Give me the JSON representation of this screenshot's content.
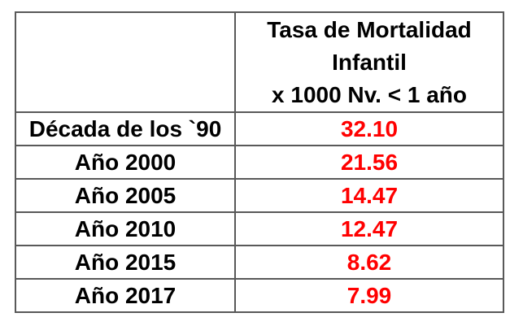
{
  "table": {
    "header_lines": [
      "Tasa de Mortalidad",
      "Infantil",
      "x 1000 Nv. < 1 año"
    ],
    "rows": [
      {
        "label": "Década de los `90",
        "value": "32.10"
      },
      {
        "label": "Año 2000",
        "value": "21.56"
      },
      {
        "label": "Año 2005",
        "value": "14.47"
      },
      {
        "label": "Año 2010",
        "value": "12.47"
      },
      {
        "label": "Año 2015",
        "value": "8.62"
      },
      {
        "label": "Año 2017",
        "value": "7.99"
      }
    ],
    "colors": {
      "value_text": "#ff0000",
      "label_text": "#000000",
      "grid_border": "#595959",
      "background": "#ffffff"
    }
  },
  "chart_data": {
    "type": "table",
    "title": "Tasa de Mortalidad Infantil x 1000 Nv. < 1 año",
    "categories": [
      "Década de los `90",
      "Año 2000",
      "Año 2005",
      "Año 2010",
      "Año 2015",
      "Año 2017"
    ],
    "values": [
      32.1,
      21.56,
      14.47,
      12.47,
      8.62,
      7.99
    ]
  }
}
